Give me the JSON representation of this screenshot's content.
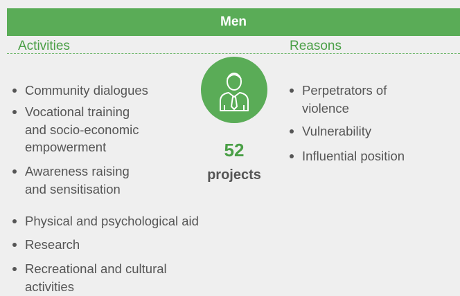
{
  "header": {
    "title": "Men"
  },
  "activities": {
    "title": "Activities",
    "items": [
      [
        "Community dialogues"
      ],
      [
        "Vocational training",
        "and socio-economic",
        "empowerment"
      ],
      [
        "Awareness raising",
        "and sensitisation"
      ],
      [
        "Physical and psychological aid"
      ],
      [
        "Research"
      ],
      [
        "Recreational and cultural",
        "activities"
      ]
    ]
  },
  "center": {
    "count": 52,
    "label": "projects"
  },
  "reasons": {
    "title": "Reasons",
    "items": [
      [
        "Perpetrators of",
        "violence"
      ],
      [
        "Vulnerability"
      ],
      [
        "Influential position"
      ]
    ]
  }
}
